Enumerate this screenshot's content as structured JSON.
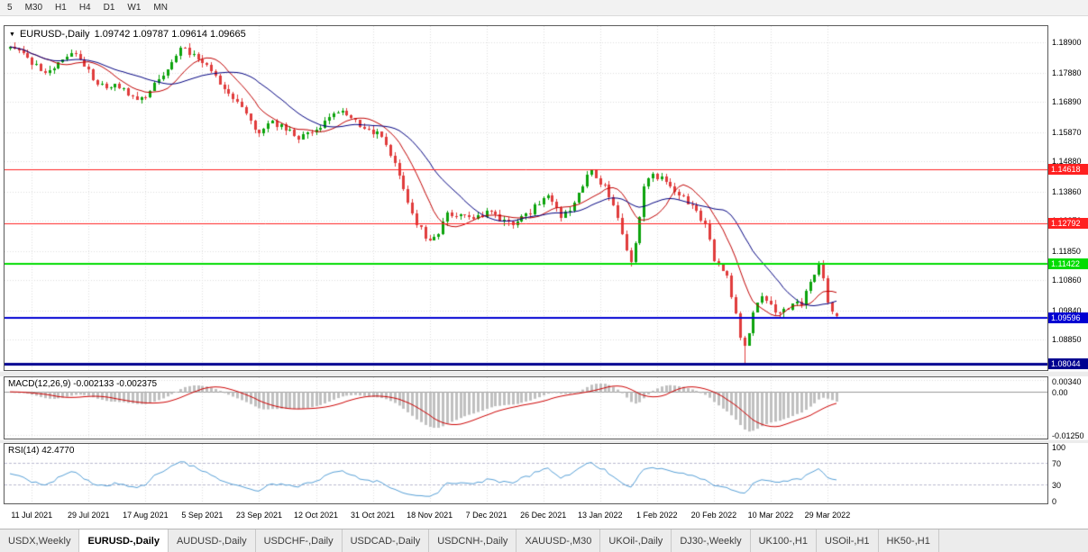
{
  "toolbar": {
    "timeframes": [
      "5",
      "M30",
      "H1",
      "H4",
      "D1",
      "W1",
      "MN"
    ]
  },
  "chart": {
    "title": "EURUSD-,Daily",
    "ohlc_text": "1.09742 1.09787 1.09614 1.09665",
    "dropdown_glyph": "▼"
  },
  "macd_panel": {
    "label": "MACD(12,26,9) -0.002133 -0.002375",
    "axis_ticks": [
      "0.00340",
      "0.00",
      "-0.01250"
    ]
  },
  "rsi_panel": {
    "label": "RSI(14) 42.4770",
    "axis_ticks": [
      "100",
      "70",
      "30",
      "0"
    ]
  },
  "tabs": {
    "active": "EURUSD-,Daily",
    "items": [
      "USDX,Weekly",
      "EURUSD-,Daily",
      "AUDUSD-,Daily",
      "USDCHF-,Daily",
      "USDCAD-,Daily",
      "USDCNH-,Daily",
      "XAUUSD-,M30",
      "UKOil-,Daily",
      "DJ30-,Weekly",
      "UK100-,H1",
      "USOil-,H1",
      "HK50-,H1"
    ]
  },
  "colors": {
    "bull": "#0CA30C",
    "bear": "#E03C3C",
    "macd_hist": "#C0C0C0",
    "macd_signal": "#CC0000",
    "rsi_line": "#569FD6",
    "rsi_levels": "#B9B9CF",
    "grid": "#DEDEDE",
    "zero_line": "#9A9A9A"
  },
  "chart_data": {
    "type": "candlestick",
    "symbol": "EURUSD-",
    "timeframe": "Daily",
    "current_ohlc": {
      "open": 1.09742,
      "high": 1.09787,
      "low": 1.09614,
      "close": 1.09665
    },
    "bars": 190,
    "min_low": 1.0805,
    "y_axis_ticks": [
      "1.18900",
      "1.17880",
      "1.16890",
      "1.15870",
      "1.14880",
      "1.13860",
      "1.12870",
      "1.11850",
      "1.10860",
      "1.09840",
      "1.08850"
    ],
    "date_ticks": [
      "11 Jul 2021",
      "29 Jul 2021",
      "17 Aug 2021",
      "5 Sep 2021",
      "23 Sep 2021",
      "12 Oct 2021",
      "31 Oct 2021",
      "18 Nov 2021",
      "7 Dec 2021",
      "26 Dec 2021",
      "13 Jan 2022",
      "1 Feb 2022",
      "20 Feb 2022",
      "10 Mar 2022",
      "29 Mar 2022"
    ],
    "horizontal_levels": [
      {
        "price": 1.14618,
        "label": "1.14618",
        "color": "#FF2020",
        "width": 1
      },
      {
        "price": 1.12792,
        "label": "1.12792",
        "color": "#FF2020",
        "width": 1
      },
      {
        "price": 1.11422,
        "label": "1.11422",
        "color": "#00DC00",
        "width": 2
      },
      {
        "price": 1.09596,
        "label": "1.09596",
        "color": "#0000D2",
        "width": 2
      },
      {
        "price": 1.08044,
        "label": "1.08044",
        "color": "#000090",
        "width": 3
      }
    ],
    "moving_averages": [
      {
        "period": 10,
        "color": "#C00000"
      },
      {
        "period": 21,
        "color": "#000080"
      }
    ],
    "indicators": {
      "macd": {
        "fast": 12,
        "slow": 26,
        "signal": 9,
        "value": -0.002133,
        "signal_value": -0.002375
      },
      "rsi": {
        "period": 14,
        "value": 42.477,
        "levels": [
          70,
          30
        ]
      }
    },
    "price_trend_anchors": [
      [
        0.0,
        1.1868
      ],
      [
        0.022,
        1.1838
      ],
      [
        0.042,
        1.1776
      ],
      [
        0.08,
        1.1862
      ],
      [
        0.105,
        1.1748
      ],
      [
        0.13,
        1.174
      ],
      [
        0.155,
        1.169
      ],
      [
        0.175,
        1.1748
      ],
      [
        0.21,
        1.1875
      ],
      [
        0.235,
        1.182
      ],
      [
        0.265,
        1.172
      ],
      [
        0.3,
        1.1588
      ],
      [
        0.32,
        1.162
      ],
      [
        0.35,
        1.1565
      ],
      [
        0.375,
        1.161
      ],
      [
        0.4,
        1.1655
      ],
      [
        0.425,
        1.161
      ],
      [
        0.45,
        1.157
      ],
      [
        0.47,
        1.145
      ],
      [
        0.49,
        1.129
      ],
      [
        0.51,
        1.1205
      ],
      [
        0.53,
        1.132
      ],
      [
        0.555,
        1.129
      ],
      [
        0.58,
        1.132
      ],
      [
        0.605,
        1.127
      ],
      [
        0.63,
        1.132
      ],
      [
        0.65,
        1.1368
      ],
      [
        0.668,
        1.13
      ],
      [
        0.685,
        1.1355
      ],
      [
        0.7,
        1.146
      ],
      [
        0.718,
        1.141
      ],
      [
        0.733,
        1.1315
      ],
      [
        0.752,
        1.114
      ],
      [
        0.77,
        1.144
      ],
      [
        0.788,
        1.1435
      ],
      [
        0.81,
        1.138
      ],
      [
        0.828,
        1.133
      ],
      [
        0.845,
        1.1255
      ],
      [
        0.852,
        1.115
      ],
      [
        0.868,
        1.111
      ],
      [
        0.883,
        1.09
      ],
      [
        0.89,
        1.0855
      ],
      [
        0.9,
        1.099
      ],
      [
        0.913,
        1.1035
      ],
      [
        0.928,
        1.0975
      ],
      [
        0.945,
        1.0995
      ],
      [
        0.958,
        1.101
      ],
      [
        0.972,
        1.1105
      ],
      [
        0.98,
        1.1145
      ],
      [
        0.99,
        1.101
      ],
      [
        1.0,
        1.0967
      ]
    ]
  }
}
